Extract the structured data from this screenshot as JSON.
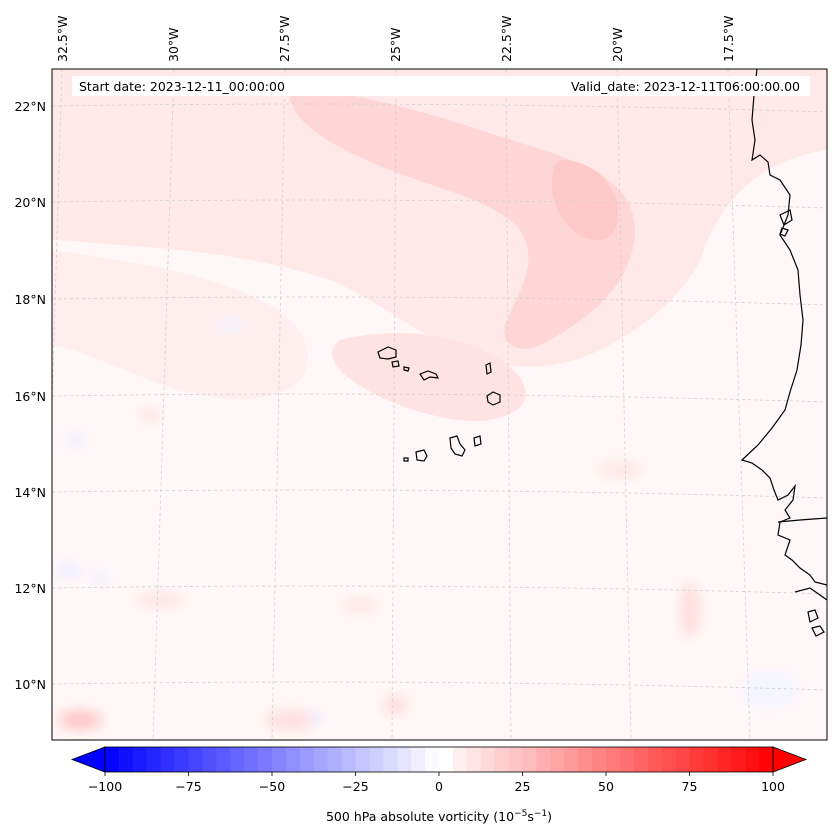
{
  "map": {
    "start_date": "Start date: 2023-12-11_00:00:00",
    "valid_date": "Valid_date: 2023-12-11T06:00:00.00",
    "lon_labels": [
      "32.5°W",
      "30°W",
      "27.5°W",
      "25°W",
      "22.5°W",
      "20°W",
      "17.5°W"
    ],
    "lat_labels": [
      "22°N",
      "20°N",
      "18°N",
      "16°N",
      "14°N",
      "12°N",
      "10°N"
    ],
    "lon_range": [
      -32.5,
      -15.0
    ],
    "lat_range": [
      9.0,
      22.8
    ],
    "gridlines": true
  },
  "colorbar": {
    "ticks": [
      "−100",
      "−75",
      "−50",
      "−25",
      "0",
      "25",
      "50",
      "75",
      "100"
    ],
    "range": [
      -100,
      100
    ],
    "levels": 48,
    "label_text": "500 hPa absolute vorticity (10",
    "label_exp1": "−5",
    "label_mid": "s",
    "label_exp2": "−1",
    "label_end": ")",
    "colors": {
      "negative": "#0000ff",
      "zero": "#ffffff",
      "positive": "#ff0000"
    }
  },
  "colors": {
    "coastline": "#000000",
    "grid": "#bdbdbd",
    "frame": "#000000"
  }
}
